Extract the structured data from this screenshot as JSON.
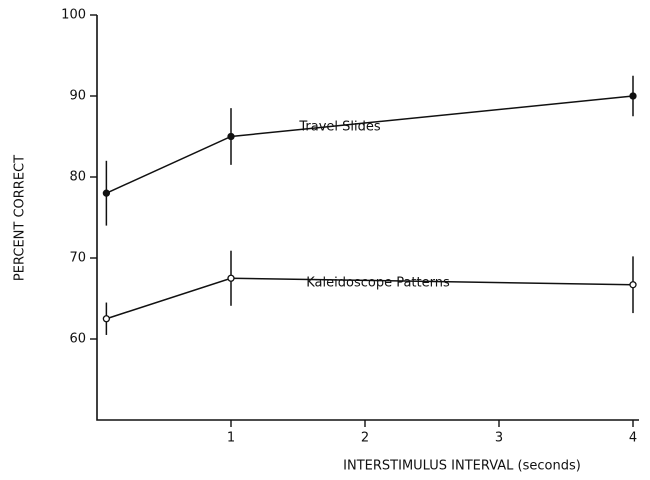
{
  "chart_data": {
    "type": "line",
    "xlabel": "INTERSTIMULUS INTERVAL (seconds)",
    "ylabel": "PERCENT CORRECT",
    "x": [
      0.07,
      1,
      4
    ],
    "series": [
      {
        "name": "Travel Slides",
        "color": "#111111",
        "marker": "filled",
        "values": [
          78,
          85,
          90
        ],
        "errors": [
          4,
          3.5,
          2.5
        ]
      },
      {
        "name": "Kaleidoscope Patterns",
        "color": "#111111",
        "marker": "open",
        "values": [
          62.5,
          67.5,
          66.7
        ],
        "errors": [
          2,
          3.4,
          3.5
        ]
      }
    ],
    "xlim": [
      0,
      4
    ],
    "xticks": [
      1,
      2,
      3,
      4
    ],
    "ylim": [
      50,
      100
    ],
    "yticks": [
      60,
      70,
      80,
      90,
      100
    ],
    "grid": false
  }
}
